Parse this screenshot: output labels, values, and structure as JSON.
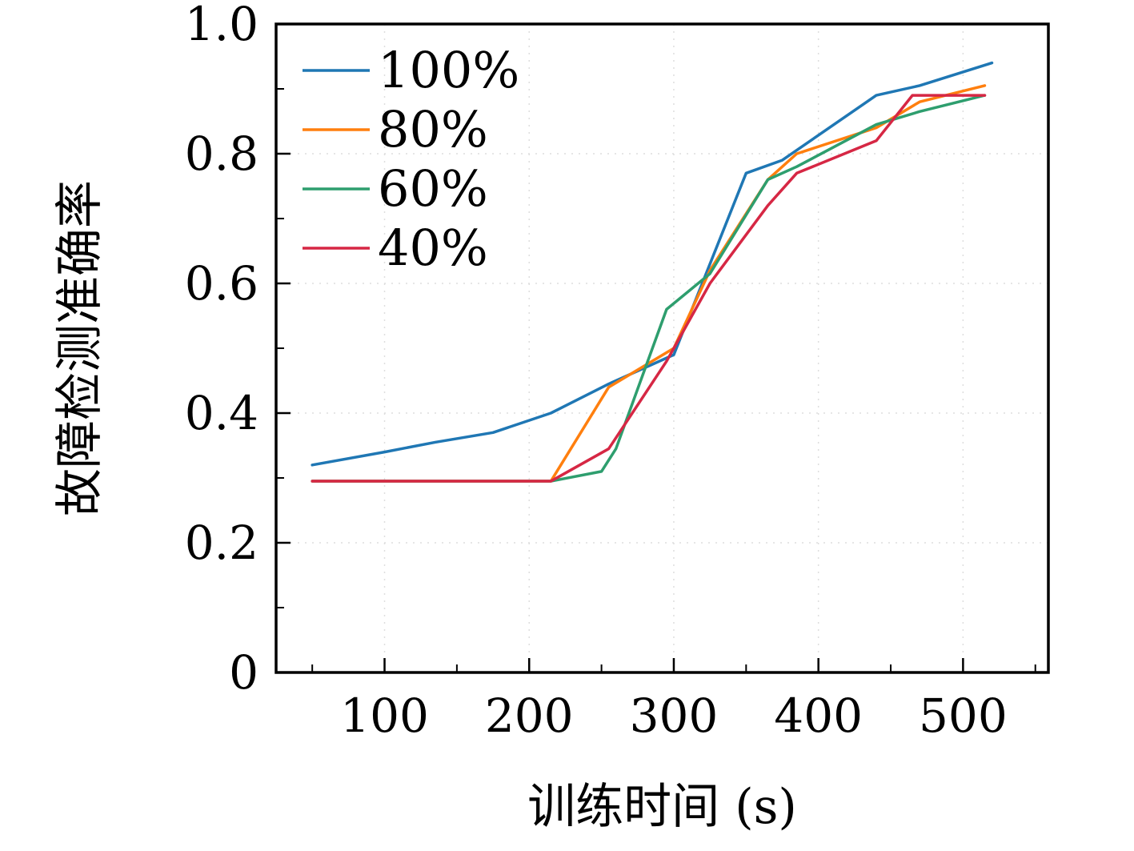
{
  "chart_data": {
    "type": "line",
    "title": "",
    "xlabel": "训练时间 (s)",
    "ylabel": "故障检测准确率",
    "xlim": [
      25,
      559
    ],
    "ylim": [
      0,
      1.0
    ],
    "x_ticks": [
      100,
      200,
      300,
      400,
      500
    ],
    "x_tick_labels": [
      "100",
      "200",
      "300",
      "400",
      "500"
    ],
    "y_ticks": [
      0,
      0.2,
      0.4,
      0.6,
      0.8,
      1.0
    ],
    "y_tick_labels": [
      "0",
      "0.2",
      "0.4",
      "0.6",
      "0.8",
      "1.0"
    ],
    "grid": "faint dashed lines at major ticks",
    "legend_position": "upper left",
    "frame": "full box, black",
    "axis_color": "#000000",
    "grid_color": "#dedede",
    "series": [
      {
        "name": "100%",
        "color": "#1f77b4",
        "x": [
          50,
          100,
          135,
          175,
          215,
          255,
          300,
          350,
          375,
          440,
          470,
          520
        ],
        "y": [
          0.32,
          0.34,
          0.355,
          0.37,
          0.4,
          0.445,
          0.49,
          0.77,
          0.79,
          0.89,
          0.905,
          0.94
        ]
      },
      {
        "name": "80%",
        "color": "#ff7f0e",
        "x": [
          50,
          215,
          255,
          300,
          325,
          365,
          385,
          440,
          470,
          515
        ],
        "y": [
          0.295,
          0.295,
          0.44,
          0.5,
          0.62,
          0.76,
          0.8,
          0.84,
          0.88,
          0.905
        ]
      },
      {
        "name": "60%",
        "color": "#2e9e6e",
        "x": [
          50,
          215,
          250,
          260,
          295,
          325,
          365,
          385,
          440,
          470,
          515
        ],
        "y": [
          0.295,
          0.295,
          0.31,
          0.345,
          0.56,
          0.615,
          0.76,
          0.78,
          0.845,
          0.865,
          0.89
        ]
      },
      {
        "name": "40%",
        "color": "#d62744",
        "x": [
          50,
          215,
          255,
          295,
          325,
          365,
          385,
          440,
          465,
          515
        ],
        "y": [
          0.295,
          0.295,
          0.345,
          0.48,
          0.6,
          0.72,
          0.77,
          0.82,
          0.89,
          0.89
        ]
      }
    ]
  }
}
